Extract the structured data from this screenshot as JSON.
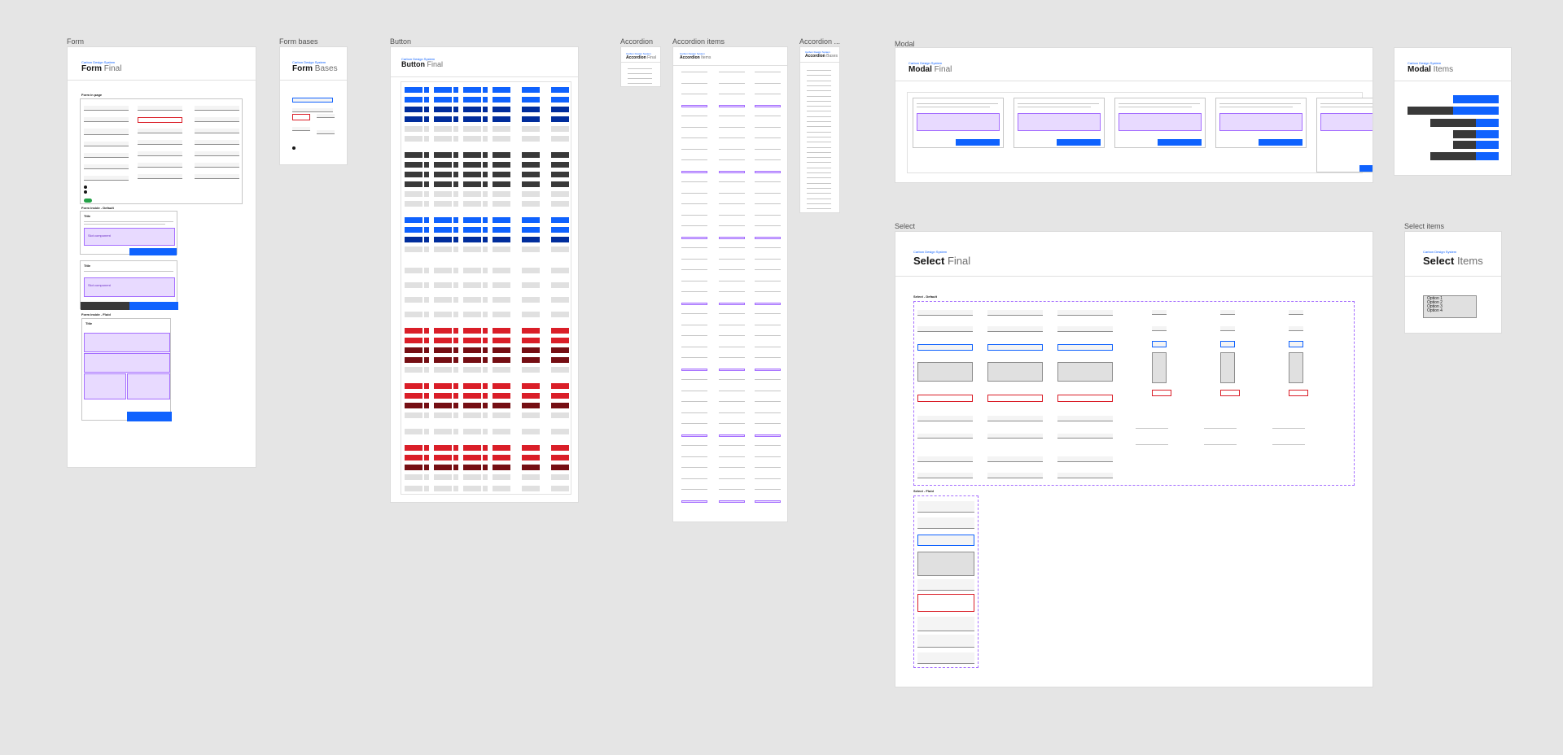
{
  "canvas_labels": {
    "form": "Form",
    "form_bases": "Form bases",
    "button": "Button",
    "accordion": "Accordion",
    "accordion_items": "Accordion items",
    "accordion_bases": "Accordion ...",
    "modal": "Modal",
    "modal_items": "Modal Items",
    "select": "Select",
    "select_items": "Select items"
  },
  "frames": {
    "form": {
      "sub": "Carbon Design System",
      "title": "Form",
      "suffix": "Final"
    },
    "form_bases": {
      "sub": "Carbon Design System",
      "title": "Form",
      "suffix": "Bases"
    },
    "button": {
      "sub": "Carbon Design System",
      "title": "Button",
      "suffix": "Final"
    },
    "accordion": {
      "sub": "Carbon Design System",
      "title": "Accordion",
      "suffix": "Final"
    },
    "accordion_items": {
      "sub": "Carbon Design System",
      "title": "Accordion",
      "suffix": "Items"
    },
    "accordion_bases": {
      "sub": "Carbon Design System",
      "title": "Accordion",
      "suffix": "Bases"
    },
    "modal": {
      "sub": "Carbon Design System",
      "title": "Modal",
      "suffix": "Final"
    },
    "modal_items": {
      "sub": "Carbon Design System",
      "title": "Modal",
      "suffix": "Items"
    },
    "select": {
      "sub": "Carbon Design System",
      "title": "Select",
      "suffix": "Final"
    },
    "select_items": {
      "sub": "Carbon Design System",
      "title": "Select",
      "suffix": "Items"
    }
  },
  "form_content": {
    "form_in_page": "Form in page",
    "form_inside_default": "Form inside - Default",
    "form_inside_fluid": "Form inside - Fluid",
    "modal_title": "Title",
    "slot_component": "Slot component",
    "primary": "Primary",
    "secondary": "Secondary",
    "label": "Label"
  },
  "select_content": {
    "default_section": "Select - Default",
    "fluid_section": "Select - Fluid",
    "select_label": "Select label",
    "options": [
      "Option 1",
      "Option 2",
      "Option 3",
      "Option 4"
    ],
    "error": "Error message goes here",
    "warning": "Warning message goes here",
    "selected": "Option 1 No option selected"
  },
  "colors": {
    "canvas": "#e5e5e5",
    "interactive": "#0f62fe",
    "danger": "#da1e28",
    "slot": "#a56eff"
  }
}
